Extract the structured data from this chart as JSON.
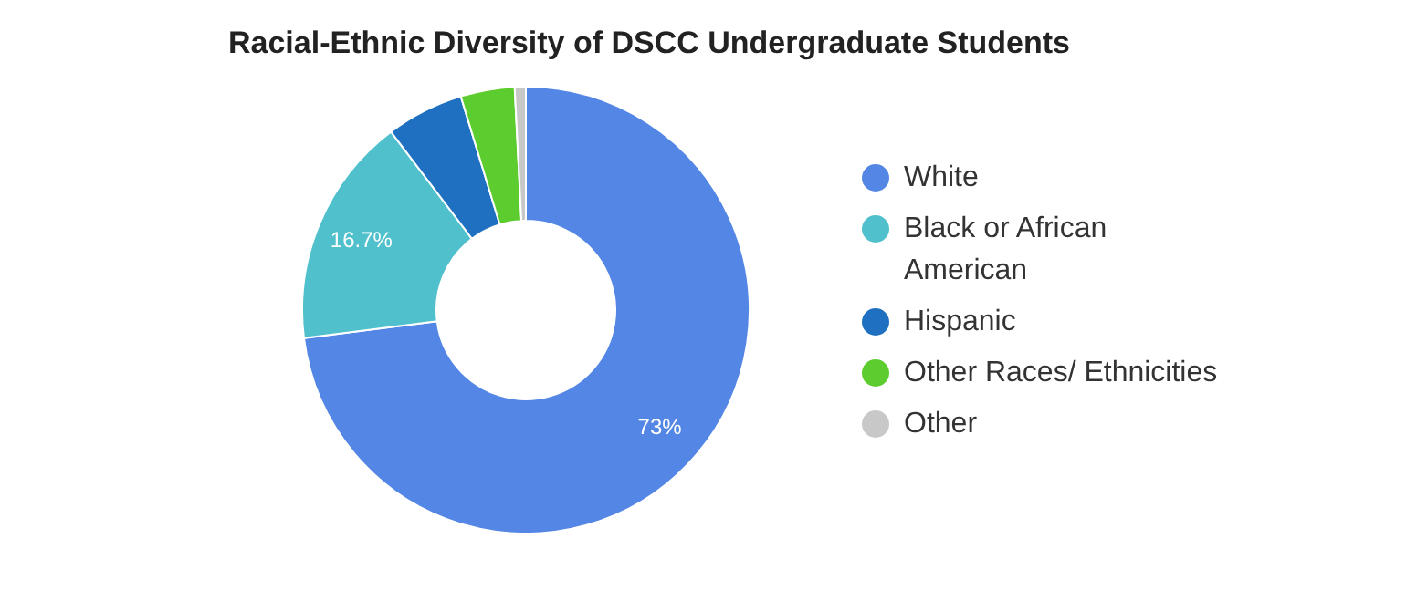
{
  "chart_data": {
    "type": "donut",
    "title": "Racial-Ethnic Diversity of DSCC Undergraduate Students",
    "categories": [
      "White",
      "Black or African American",
      "Hispanic",
      "Other Races/ Ethnicities",
      "Other"
    ],
    "values": [
      73,
      16.7,
      5.6,
      3.9,
      0.8
    ],
    "colors": [
      "#5486e5",
      "#4fc0cc",
      "#1f70c1",
      "#5ccc2e",
      "#c8c8c8"
    ],
    "value_labels": [
      "73%",
      "16.7%",
      null,
      null,
      null
    ],
    "legend": "right"
  }
}
